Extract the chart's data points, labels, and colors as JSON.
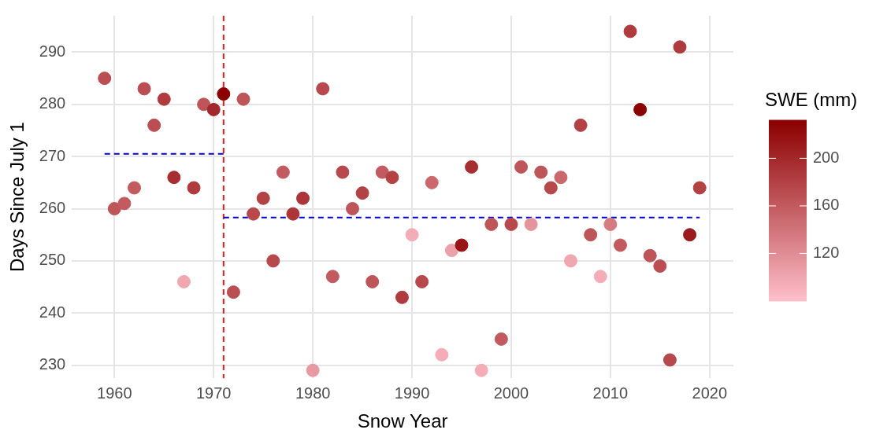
{
  "chart_data": {
    "type": "scatter",
    "xlabel": "Snow Year",
    "ylabel": "Days Since July 1",
    "clabel": "SWE (mm)",
    "xlim": [
      1955.7,
      2022.4
    ],
    "xticks": [
      1960,
      1970,
      1980,
      1990,
      2000,
      2010,
      2020
    ],
    "ylim": [
      227.5,
      297
    ],
    "yticks": [
      230,
      240,
      250,
      260,
      270,
      280,
      290
    ],
    "clim": [
      80,
      232
    ],
    "cticks": [
      120,
      160,
      200
    ],
    "grid": true,
    "legend": false,
    "marker": "circle",
    "series": [
      {
        "type": "scatter",
        "x": [
          1959,
          1960,
          1961,
          1962,
          1963,
          1964,
          1965,
          1966,
          1967,
          1968,
          1969,
          1970,
          1971,
          1972,
          1973,
          1974,
          1975,
          1976,
          1977,
          1978,
          1979,
          1980,
          1981,
          1982,
          1983,
          1984,
          1985,
          1986,
          1987,
          1988,
          1989,
          1990,
          1991,
          1992,
          1993,
          1994,
          1995,
          1996,
          1997,
          1998,
          1999,
          2000,
          2001,
          2002,
          2003,
          2004,
          2005,
          2006,
          2007,
          2008,
          2009,
          2010,
          2011,
          2012,
          2013,
          2014,
          2015,
          2016,
          2017,
          2018,
          2019
        ],
        "values": [
          285,
          260,
          261,
          264,
          283,
          276,
          281,
          266,
          246,
          264,
          280,
          279,
          282,
          244,
          281,
          259,
          262,
          250,
          267,
          259,
          262,
          229,
          283,
          247,
          267,
          260,
          263,
          246,
          267,
          266,
          243,
          255,
          246,
          265,
          232,
          252,
          253,
          268,
          229,
          257,
          235,
          257,
          268,
          257,
          267,
          264,
          266,
          250,
          276,
          255,
          247,
          257,
          253,
          294,
          279,
          251,
          249,
          231,
          291,
          255,
          264
        ],
        "cvalues": [
          170,
          165,
          160,
          160,
          170,
          170,
          185,
          195,
          100,
          185,
          165,
          200,
          230,
          170,
          165,
          175,
          180,
          175,
          160,
          190,
          190,
          110,
          175,
          160,
          175,
          165,
          180,
          165,
          160,
          180,
          185,
          95,
          175,
          150,
          95,
          105,
          215,
          195,
          95,
          165,
          160,
          175,
          165,
          115,
          165,
          175,
          150,
          100,
          180,
          165,
          95,
          135,
          160,
          185,
          230,
          165,
          170,
          175,
          185,
          210,
          180
        ],
        "colors": [
          "#ba4e53",
          "#be5559",
          "#c25b60",
          "#c25b60",
          "#ba4e53",
          "#ba4e53",
          "#af3b3f",
          "#a72f31",
          "#f0a7b0",
          "#af3b3f",
          "#be5559",
          "#a3282b",
          "#8c0303",
          "#ba4e53",
          "#be5559",
          "#b7484c",
          "#b34245",
          "#b7484c",
          "#c25b60",
          "#ab3538",
          "#ab3538",
          "#e89aa3",
          "#b7484c",
          "#c25b60",
          "#b7484c",
          "#be5559",
          "#b34245",
          "#be5559",
          "#c25b60",
          "#b34245",
          "#af3b3f",
          "#f4adb7",
          "#b7484c",
          "#ca686e",
          "#f4adb7",
          "#eca0aa",
          "#981517",
          "#a72f31",
          "#f4adb7",
          "#be5559",
          "#c25b60",
          "#b7484c",
          "#be5559",
          "#e4949c",
          "#be5559",
          "#b7484c",
          "#ca686e",
          "#f0a7b0",
          "#b34245",
          "#be5559",
          "#f4adb7",
          "#d57b82",
          "#c25b60",
          "#af3b3f",
          "#8c0303",
          "#be5559",
          "#ba4e53",
          "#b7484c",
          "#af3b3f",
          "#9c1c1d",
          "#b34245"
        ]
      },
      {
        "type": "line",
        "x": [
          1959,
          1971
        ],
        "values": [
          270.5,
          270.5
        ],
        "color": "#0000cd",
        "line_style": "dashed",
        "marker": "none"
      },
      {
        "type": "line",
        "x": [
          1971,
          2019
        ],
        "values": [
          258.3,
          258.3
        ],
        "color": "#0000cd",
        "line_style": "dashed",
        "marker": "none"
      }
    ],
    "ref_lines": [
      {
        "axis": "x",
        "value": 1971,
        "color": "#e41a1c",
        "line_style": "dashed"
      }
    ]
  }
}
